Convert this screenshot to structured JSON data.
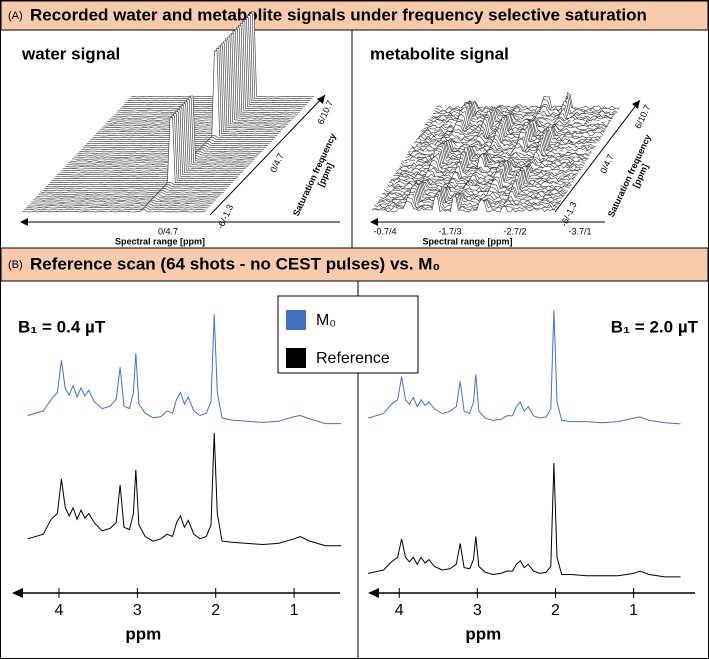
{
  "panel_a": {
    "label": "(A)",
    "title": "Recorded water and metabolite signals under frequency selective saturation",
    "water": {
      "title": "water signal",
      "x_label": "Spectral range [ppm]",
      "x_ticks": [
        "0/4.7"
      ],
      "z_label": [
        "Saturation frequency",
        "[ppm]"
      ],
      "z_ticks": [
        "-6/-1.3",
        "0/4.7",
        "6/10.7"
      ]
    },
    "metabolite": {
      "title": "metabolite signal",
      "x_label": "Spectral range [ppm]",
      "x_ticks": [
        "-0.7/4",
        "-1.7/3",
        "-2.7/2",
        "-3.7/1"
      ],
      "z_label": [
        "Saturation frequency",
        "[ppm]"
      ],
      "z_ticks": [
        "-6/-1.3",
        "0/4.7",
        "6/10.7"
      ]
    }
  },
  "panel_b": {
    "label": "(B)",
    "title": "Reference scan (64 shots - no CEST pulses) vs. M₀",
    "legend": [
      {
        "name": "M₀",
        "color": "#4472c4"
      },
      {
        "name": "Reference",
        "color": "#000000"
      }
    ]
  },
  "chart_data": [
    {
      "type": "line",
      "title": "B₁ = 0.4 µT",
      "x_label": "ppm",
      "xlim": [
        4.6,
        0.35
      ],
      "xticks": [
        4,
        3,
        2,
        1
      ],
      "ylim": [
        0,
        100
      ],
      "x": [
        4.4,
        4.2,
        4.1,
        4.02,
        3.97,
        3.92,
        3.87,
        3.82,
        3.77,
        3.72,
        3.67,
        3.62,
        3.55,
        3.45,
        3.35,
        3.27,
        3.22,
        3.17,
        3.1,
        3.05,
        3.02,
        2.98,
        2.9,
        2.8,
        2.7,
        2.62,
        2.55,
        2.5,
        2.45,
        2.4,
        2.35,
        2.28,
        2.2,
        2.12,
        2.06,
        2.02,
        1.98,
        1.92,
        1.8,
        1.6,
        1.4,
        1.2,
        1.0,
        0.92,
        0.8,
        0.6,
        0.4
      ],
      "series": [
        {
          "values": [
            10,
            14,
            24,
            30,
            58,
            33,
            28,
            36,
            26,
            34,
            27,
            32,
            22,
            16,
            18,
            24,
            52,
            18,
            16,
            30,
            64,
            20,
            12,
            8,
            9,
            14,
            12,
            24,
            30,
            20,
            26,
            14,
            10,
            12,
            22,
            98,
            30,
            8,
            6,
            5,
            4,
            5,
            9,
            10,
            7,
            3,
            3
          ]
        },
        {
          "values": [
            8,
            12,
            25,
            30,
            60,
            35,
            28,
            35,
            25,
            33,
            26,
            30,
            22,
            15,
            17,
            22,
            55,
            18,
            16,
            30,
            68,
            20,
            10,
            6,
            8,
            12,
            10,
            22,
            28,
            18,
            24,
            12,
            8,
            10,
            20,
            100,
            30,
            6,
            5,
            4,
            3,
            4,
            8,
            10,
            6,
            2,
            2
          ]
        }
      ]
    },
    {
      "type": "line",
      "title": "B₁ = 2.0 µT",
      "x_label": "ppm",
      "xlim": [
        4.4,
        0.15
      ],
      "xticks": [
        4,
        3,
        2,
        1
      ],
      "ylim": [
        0,
        100
      ],
      "x": [
        4.4,
        4.2,
        4.1,
        4.02,
        3.97,
        3.92,
        3.87,
        3.82,
        3.77,
        3.72,
        3.67,
        3.62,
        3.55,
        3.45,
        3.35,
        3.27,
        3.22,
        3.17,
        3.1,
        3.05,
        3.02,
        2.98,
        2.9,
        2.8,
        2.7,
        2.62,
        2.55,
        2.5,
        2.45,
        2.4,
        2.35,
        2.28,
        2.2,
        2.12,
        2.06,
        2.02,
        1.98,
        1.92,
        1.8,
        1.6,
        1.4,
        1.2,
        1.0,
        0.92,
        0.8,
        0.6,
        0.4
      ],
      "series": [
        {
          "values": [
            6,
            10,
            18,
            22,
            42,
            22,
            18,
            24,
            16,
            22,
            17,
            20,
            14,
            10,
            12,
            16,
            38,
            12,
            10,
            20,
            44,
            12,
            6,
            4,
            5,
            8,
            8,
            16,
            20,
            12,
            16,
            8,
            6,
            7,
            14,
            100,
            20,
            4,
            3,
            3,
            2,
            3,
            6,
            7,
            4,
            2,
            1
          ]
        },
        {
          "values": [
            4,
            7,
            14,
            18,
            34,
            18,
            14,
            18,
            12,
            18,
            13,
            16,
            10,
            7,
            8,
            12,
            30,
            9,
            8,
            16,
            36,
            10,
            5,
            3,
            4,
            6,
            6,
            12,
            15,
            9,
            12,
            6,
            4,
            5,
            10,
            100,
            18,
            3,
            3,
            2,
            2,
            2,
            4,
            6,
            3,
            1,
            1
          ]
        }
      ]
    }
  ]
}
